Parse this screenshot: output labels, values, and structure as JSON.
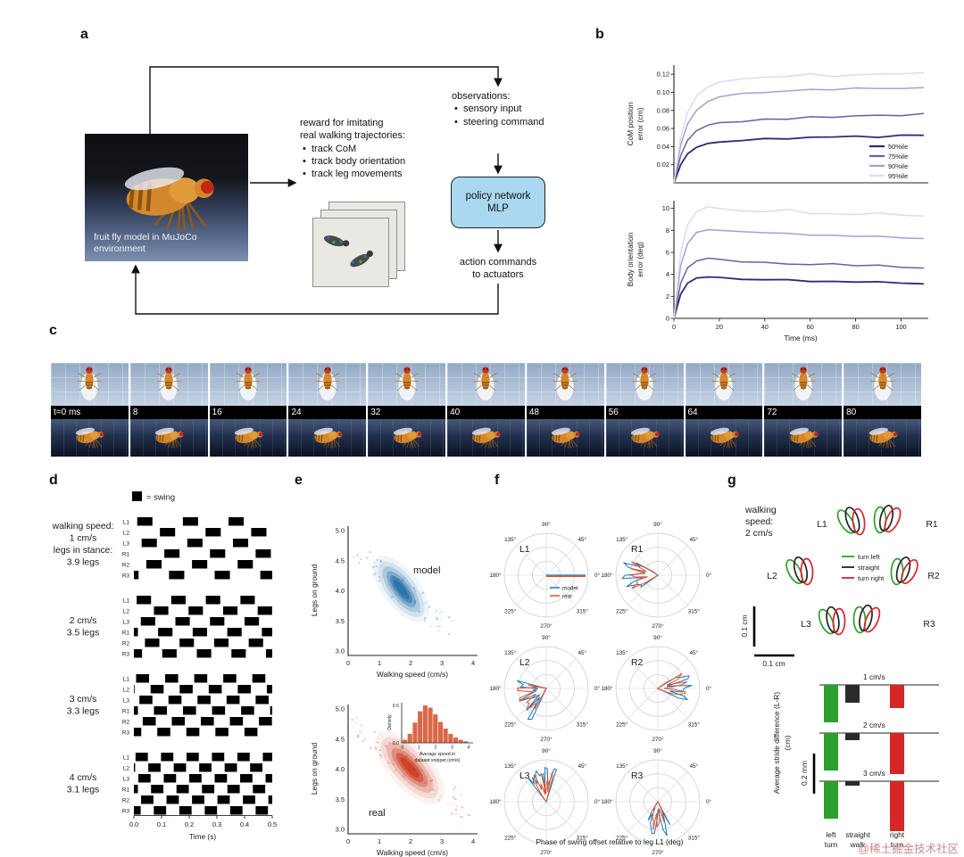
{
  "watermark": "@稀土掘金技术社区",
  "panel_labels": [
    "a",
    "b",
    "c",
    "d",
    "e",
    "f",
    "g"
  ],
  "a": {
    "caption_lines": [
      "fruit fly model in MuJoCo",
      "environment"
    ],
    "reward_title_lines": [
      "reward for imitating",
      "real walking trajectories:"
    ],
    "reward_bullets": [
      "track CoM",
      "track body orientation",
      "track leg movements"
    ],
    "observations_title": "observations:",
    "observation_bullets": [
      "sensory input",
      "steering command"
    ],
    "policy_lines": [
      "policy network",
      "MLP"
    ],
    "action_lines": [
      "action commands",
      "to actuators"
    ]
  },
  "b": {
    "top_ylabel_lines": [
      "CoM position",
      "error (cm)"
    ],
    "top_yticks": [
      "0.02",
      "0.04",
      "0.06",
      "0.08",
      "0.10",
      "0.12"
    ],
    "bottom_ylabel_lines": [
      "Body orientation",
      "error (deg)"
    ],
    "bottom_yticks": [
      "0",
      "2",
      "4",
      "6",
      "8",
      "10"
    ],
    "xticks": [
      "0",
      "20",
      "40",
      "60",
      "80",
      "100"
    ],
    "xlabel": "Time (ms)",
    "legend": [
      {
        "label": "50%ile",
        "color": "#2b2c77"
      },
      {
        "label": "75%ile",
        "color": "#63639f"
      },
      {
        "label": "90%ile",
        "color": "#a3a1d1"
      },
      {
        "label": "95%ile",
        "color": "#dcdbee"
      }
    ]
  },
  "c": {
    "frame_labels": [
      "t=0 ms",
      "8",
      "16",
      "24",
      "32",
      "40",
      "48",
      "56",
      "64",
      "72",
      "80"
    ]
  },
  "d": {
    "legend_label": "= swing",
    "row_labels": [
      "L1",
      "L2",
      "L3",
      "R1",
      "R2",
      "R3"
    ],
    "xticks": [
      "0.0",
      "0.1",
      "0.2",
      "0.3",
      "0.4",
      "0.5"
    ],
    "xlabel": "Time (s)",
    "blocks": [
      {
        "info_lines": [
          "walking speed:",
          "1 cm/s",
          "legs in stance:",
          "3.9 legs"
        ],
        "period": 0.165,
        "swing": 0.055,
        "offsets": [
          0.012,
          0.094,
          0.028,
          0.11,
          0.045,
          0.127
        ]
      },
      {
        "info_lines": [
          "2 cm/s",
          "3.5 legs"
        ],
        "period": 0.125,
        "swing": 0.052,
        "offsets": [
          0.01,
          0.0725,
          0.025,
          0.0875,
          0.04,
          0.1025
        ]
      },
      {
        "info_lines": [
          "3 cm/s",
          "3.3 legs"
        ],
        "period": 0.105,
        "swing": 0.047,
        "offsets": [
          0.008,
          0.0605,
          0.02,
          0.0725,
          0.032,
          0.0845
        ]
      },
      {
        "info_lines": [
          "4 cm/s",
          "3.1 legs"
        ],
        "period": 0.092,
        "swing": 0.0445,
        "offsets": [
          0.006,
          0.052,
          0.016,
          0.062,
          0.026,
          0.072
        ]
      }
    ]
  },
  "e": {
    "ylabel": "Legs on ground",
    "xlabel": "Walking speed (cm/s)",
    "yticks": [
      "3.0",
      "3.5",
      "4.0",
      "4.5",
      "5.0"
    ],
    "xticks": [
      "0",
      "1",
      "2",
      "3",
      "4"
    ],
    "model_label": "model",
    "real_label": "real",
    "model_color": "#2470a8",
    "real_color": "#cc3d20",
    "model_band": [
      1.0,
      4.5,
      2.4,
      3.55
    ],
    "real_band": [
      1.05,
      4.55,
      2.9,
      3.5
    ],
    "inset": {
      "ylabel": "Density",
      "yticks": [
        "0.5",
        "0.0"
      ],
      "xticks": [
        "0",
        "1",
        "2",
        "3",
        "4"
      ],
      "xlabel_lines": [
        "Average speed in",
        "dataset snippet (cm/s)"
      ],
      "bars": [
        0.04,
        0.12,
        0.27,
        0.42,
        0.5,
        0.47,
        0.38,
        0.28,
        0.19,
        0.12,
        0.07,
        0.04,
        0.02
      ]
    }
  },
  "f": {
    "plots": [
      {
        "title": "L1",
        "type": "line",
        "angle": 0,
        "spread": 0
      },
      {
        "title": "R1",
        "type": "blob",
        "angle": 180,
        "spread": 70
      },
      {
        "title": "L2",
        "type": "blob",
        "angle": 205,
        "spread": 80
      },
      {
        "title": "R2",
        "type": "blob",
        "angle": 5,
        "spread": 60
      },
      {
        "title": "L3",
        "type": "blob",
        "angle": 100,
        "spread": 55
      },
      {
        "title": "R3",
        "type": "blob",
        "angle": 268,
        "spread": 60
      }
    ],
    "angle_labels": [
      "0°",
      "45°",
      "90°",
      "135°",
      "180°",
      "225°",
      "270°",
      "315°"
    ],
    "legend": [
      {
        "label": "model",
        "color": "#1f77b4"
      },
      {
        "label": "real",
        "color": "#d95332"
      }
    ],
    "caption": "Phase of swing offset relative to leg L1 (deg)"
  },
  "g": {
    "speed_lines": [
      "walking",
      "speed:",
      "2 cm/s"
    ],
    "leg_labels": [
      "L1",
      "R1",
      "L2",
      "R2",
      "L3",
      "R3"
    ],
    "legend": [
      {
        "label": "turn left",
        "color": "#2ca02c"
      },
      {
        "label": "straight",
        "color": "#222222"
      },
      {
        "label": "turn right",
        "color": "#d62728"
      }
    ],
    "scale_v": "0.1 cm",
    "scale_h": "0.1 cm",
    "bars_ylabel_lines": [
      "Average stride difference (L-R)",
      "(cm)"
    ],
    "bars_scale": "0.2 mm",
    "group_labels": [
      "1 cm/s",
      "2 cm/s",
      "3 cm/s"
    ],
    "bar_values": {
      "green": [
        42,
        42,
        42
      ],
      "dark": [
        20,
        8,
        5
      ],
      "red": [
        26,
        46,
        56
      ]
    },
    "xcat_lines": [
      [
        "left",
        "turn"
      ],
      [
        "straight",
        "walk"
      ],
      [
        "right",
        "turn"
      ]
    ],
    "xcat_colors": [
      "#2ca02c",
      "#222222",
      "#d62728"
    ]
  },
  "chart_data": [
    {
      "type": "line",
      "title": "CoM position error (cm) vs time",
      "xlabel": "Time (ms)",
      "ylabel": "CoM position error (cm)",
      "xlim": [
        0,
        112
      ],
      "ylim": [
        0,
        0.13
      ],
      "x": [
        0,
        3,
        6,
        10,
        15,
        20,
        30,
        40,
        50,
        60,
        70,
        80,
        90,
        100,
        110
      ],
      "series": [
        {
          "name": "50%ile",
          "values": [
            0,
            0.02,
            0.032,
            0.04,
            0.044,
            0.046,
            0.047,
            0.048,
            0.049,
            0.05,
            0.05,
            0.051,
            0.051,
            0.052,
            0.052
          ]
        },
        {
          "name": "75%ile",
          "values": [
            0,
            0.03,
            0.047,
            0.057,
            0.063,
            0.066,
            0.068,
            0.07,
            0.071,
            0.073,
            0.073,
            0.074,
            0.075,
            0.075,
            0.076
          ]
        },
        {
          "name": "90%ile",
          "values": [
            0,
            0.042,
            0.065,
            0.08,
            0.09,
            0.094,
            0.098,
            0.1,
            0.102,
            0.104,
            0.103,
            0.104,
            0.105,
            0.105,
            0.106
          ]
        },
        {
          "name": "95%ile",
          "values": [
            0,
            0.05,
            0.078,
            0.095,
            0.106,
            0.112,
            0.115,
            0.117,
            0.118,
            0.12,
            0.118,
            0.119,
            0.12,
            0.121,
            0.122
          ]
        }
      ],
      "legend_position": "right"
    },
    {
      "type": "line",
      "title": "Body orientation error (deg) vs time",
      "xlabel": "Time (ms)",
      "ylabel": "Body orientation error (deg)",
      "xlim": [
        0,
        112
      ],
      "ylim": [
        0,
        10.7
      ],
      "x": [
        0,
        3,
        6,
        10,
        15,
        20,
        30,
        40,
        50,
        60,
        70,
        80,
        90,
        100,
        110
      ],
      "series": [
        {
          "name": "50%ile",
          "values": [
            0,
            2.2,
            3.2,
            3.7,
            3.8,
            3.7,
            3.6,
            3.5,
            3.5,
            3.4,
            3.4,
            3.3,
            3.3,
            3.2,
            3.2
          ]
        },
        {
          "name": "75%ile",
          "values": [
            0,
            3.2,
            4.6,
            5.3,
            5.5,
            5.4,
            5.2,
            5.1,
            5.0,
            4.9,
            4.9,
            4.8,
            4.8,
            4.7,
            4.6
          ]
        },
        {
          "name": "90%ile",
          "values": [
            0,
            4.8,
            6.8,
            7.8,
            8.1,
            8.0,
            7.8,
            7.7,
            7.8,
            7.6,
            7.5,
            7.4,
            7.4,
            7.3,
            7.3
          ]
        },
        {
          "name": "95%ile",
          "values": [
            0,
            6.0,
            8.5,
            9.7,
            10.1,
            10.0,
            9.8,
            9.7,
            9.9,
            9.6,
            9.5,
            9.4,
            9.5,
            9.3,
            9.3
          ]
        }
      ]
    },
    {
      "type": "heatmap",
      "title": "model",
      "xlabel": "Walking speed (cm/s)",
      "ylabel": "Legs on ground",
      "xlim": [
        0,
        4.5
      ],
      "ylim": [
        3.0,
        5.2
      ],
      "trend": [
        [
          1.0,
          4.5
        ],
        [
          1.5,
          4.1
        ],
        [
          2.0,
          3.8
        ],
        [
          2.4,
          3.55
        ]
      ]
    },
    {
      "type": "heatmap",
      "title": "real",
      "xlabel": "Walking speed (cm/s)",
      "ylabel": "Legs on ground",
      "xlim": [
        0,
        4.5
      ],
      "ylim": [
        3.0,
        5.2
      ],
      "trend": [
        [
          1.05,
          4.55
        ],
        [
          1.6,
          4.15
        ],
        [
          2.2,
          3.8
        ],
        [
          2.9,
          3.5
        ]
      ],
      "inset_histogram": {
        "xlabel": "Average speed in dataset snippet (cm/s)",
        "ylabel": "Density",
        "values": [
          0.04,
          0.12,
          0.27,
          0.42,
          0.5,
          0.47,
          0.38,
          0.28,
          0.19,
          0.12,
          0.07,
          0.04,
          0.02
        ]
      }
    },
    {
      "type": "polar",
      "title": "Phase of swing offset relative to leg L1 (deg)",
      "plots": [
        {
          "leg": "L1",
          "phase_deg": 0
        },
        {
          "leg": "R1",
          "phase_deg": 180
        },
        {
          "leg": "L2",
          "phase_deg": 205
        },
        {
          "leg": "R2",
          "phase_deg": 5
        },
        {
          "leg": "L3",
          "phase_deg": 100
        },
        {
          "leg": "R3",
          "phase_deg": 268
        }
      ],
      "series_names": [
        "model",
        "real"
      ]
    },
    {
      "type": "bar",
      "title": "Average stride difference (L-R) (cm)",
      "categories": [
        "1 cm/s",
        "2 cm/s",
        "3 cm/s"
      ],
      "series": [
        {
          "name": "left turn",
          "values_mm": [
            0.19,
            0.19,
            0.19
          ]
        },
        {
          "name": "straight",
          "values_mm": [
            0.09,
            0.04,
            0.02
          ]
        },
        {
          "name": "right turn",
          "values_mm": [
            0.12,
            0.21,
            0.25
          ]
        }
      ],
      "scale_bar": "0.2 mm"
    }
  ]
}
